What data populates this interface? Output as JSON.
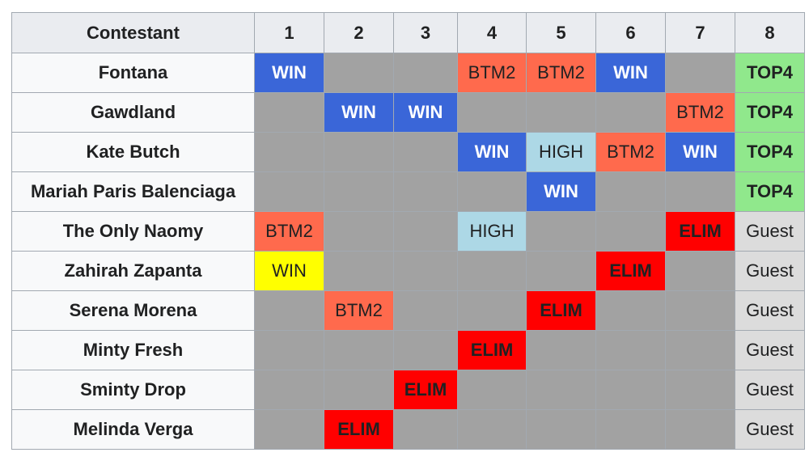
{
  "table": {
    "header": {
      "contestant": "Contestant",
      "episodes": [
        "1",
        "2",
        "3",
        "4",
        "5",
        "6",
        "7",
        "8"
      ]
    },
    "rows": [
      {
        "name": "Fontana",
        "cells": [
          {
            "text": "WIN",
            "style": "win-blue"
          },
          {
            "text": "",
            "style": "none"
          },
          {
            "text": "",
            "style": "none"
          },
          {
            "text": "BTM2",
            "style": "btm2"
          },
          {
            "text": "BTM2",
            "style": "btm2"
          },
          {
            "text": "WIN",
            "style": "win-blue"
          },
          {
            "text": "",
            "style": "none"
          },
          {
            "text": "TOP4",
            "style": "top4"
          }
        ]
      },
      {
        "name": "Gawdland",
        "cells": [
          {
            "text": "",
            "style": "none"
          },
          {
            "text": "WIN",
            "style": "win-blue"
          },
          {
            "text": "WIN",
            "style": "win-blue"
          },
          {
            "text": "",
            "style": "none"
          },
          {
            "text": "",
            "style": "none"
          },
          {
            "text": "",
            "style": "none"
          },
          {
            "text": "BTM2",
            "style": "btm2"
          },
          {
            "text": "TOP4",
            "style": "top4"
          }
        ]
      },
      {
        "name": "Kate Butch",
        "cells": [
          {
            "text": "",
            "style": "none"
          },
          {
            "text": "",
            "style": "none"
          },
          {
            "text": "",
            "style": "none"
          },
          {
            "text": "WIN",
            "style": "win-blue"
          },
          {
            "text": "HIGH",
            "style": "high"
          },
          {
            "text": "BTM2",
            "style": "btm2"
          },
          {
            "text": "WIN",
            "style": "win-blue"
          },
          {
            "text": "TOP4",
            "style": "top4"
          }
        ]
      },
      {
        "name": "Mariah Paris Balenciaga",
        "cells": [
          {
            "text": "",
            "style": "none"
          },
          {
            "text": "",
            "style": "none"
          },
          {
            "text": "",
            "style": "none"
          },
          {
            "text": "",
            "style": "none"
          },
          {
            "text": "WIN",
            "style": "win-blue"
          },
          {
            "text": "",
            "style": "none"
          },
          {
            "text": "",
            "style": "none"
          },
          {
            "text": "TOP4",
            "style": "top4"
          }
        ]
      },
      {
        "name": "The Only Naomy",
        "cells": [
          {
            "text": "BTM2",
            "style": "btm2"
          },
          {
            "text": "",
            "style": "none"
          },
          {
            "text": "",
            "style": "none"
          },
          {
            "text": "HIGH",
            "style": "high"
          },
          {
            "text": "",
            "style": "none"
          },
          {
            "text": "",
            "style": "none"
          },
          {
            "text": "ELIM",
            "style": "elim"
          },
          {
            "text": "Guest",
            "style": "guest"
          }
        ]
      },
      {
        "name": "Zahirah Zapanta",
        "cells": [
          {
            "text": "WIN",
            "style": "win-yellow"
          },
          {
            "text": "",
            "style": "none"
          },
          {
            "text": "",
            "style": "none"
          },
          {
            "text": "",
            "style": "none"
          },
          {
            "text": "",
            "style": "none"
          },
          {
            "text": "ELIM",
            "style": "elim"
          },
          {
            "text": "",
            "style": "none"
          },
          {
            "text": "Guest",
            "style": "guest"
          }
        ]
      },
      {
        "name": "Serena Morena",
        "cells": [
          {
            "text": "",
            "style": "none"
          },
          {
            "text": "BTM2",
            "style": "btm2"
          },
          {
            "text": "",
            "style": "none"
          },
          {
            "text": "",
            "style": "none"
          },
          {
            "text": "ELIM",
            "style": "elim"
          },
          {
            "text": "",
            "style": "none"
          },
          {
            "text": "",
            "style": "none"
          },
          {
            "text": "Guest",
            "style": "guest"
          }
        ]
      },
      {
        "name": "Minty Fresh",
        "cells": [
          {
            "text": "",
            "style": "none"
          },
          {
            "text": "",
            "style": "none"
          },
          {
            "text": "",
            "style": "none"
          },
          {
            "text": "ELIM",
            "style": "elim"
          },
          {
            "text": "",
            "style": "none"
          },
          {
            "text": "",
            "style": "none"
          },
          {
            "text": "",
            "style": "none"
          },
          {
            "text": "Guest",
            "style": "guest"
          }
        ]
      },
      {
        "name": "Sminty Drop",
        "cells": [
          {
            "text": "",
            "style": "none"
          },
          {
            "text": "",
            "style": "none"
          },
          {
            "text": "ELIM",
            "style": "elim"
          },
          {
            "text": "",
            "style": "none"
          },
          {
            "text": "",
            "style": "none"
          },
          {
            "text": "",
            "style": "none"
          },
          {
            "text": "",
            "style": "none"
          },
          {
            "text": "Guest",
            "style": "guest"
          }
        ]
      },
      {
        "name": "Melinda Verga",
        "cells": [
          {
            "text": "",
            "style": "none"
          },
          {
            "text": "ELIM",
            "style": "elim"
          },
          {
            "text": "",
            "style": "none"
          },
          {
            "text": "",
            "style": "none"
          },
          {
            "text": "",
            "style": "none"
          },
          {
            "text": "",
            "style": "none"
          },
          {
            "text": "",
            "style": "none"
          },
          {
            "text": "Guest",
            "style": "guest"
          }
        ]
      }
    ]
  },
  "colors": {
    "win-blue": "#3a66d8",
    "win-yellow": "#ffff00",
    "btm2": "#ff6a4d",
    "high": "#add8e6",
    "elim": "#ff0000",
    "top4": "#90e88c",
    "guest": "#dcdcdc",
    "none": "#a2a2a2",
    "header": "#eaecf0",
    "border": "#a2a9b1"
  }
}
